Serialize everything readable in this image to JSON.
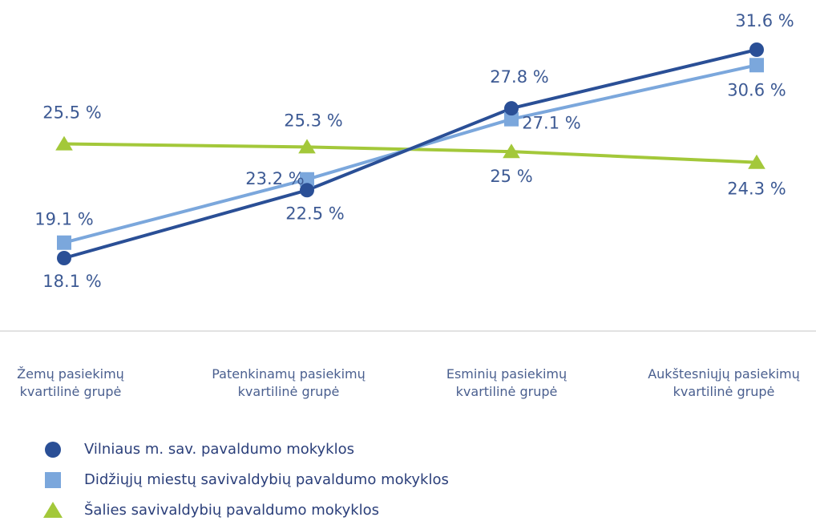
{
  "chart_data": {
    "type": "line",
    "categories": [
      "Žemų pasiekimų\nkvartilinė grupė",
      "Patenkinamų pasiekimų\nkvartilinė grupė",
      "Esminių pasiekimų\nkvartilinė grupė",
      "Aukštesniųjų pasiekimų\nkvartilinė grupė"
    ],
    "series": [
      {
        "name": "Vilniaus m. sav. pavaldumo mokyklos",
        "color": "#2a4f96",
        "marker": "circle",
        "values": [
          18.1,
          22.5,
          27.8,
          31.6
        ],
        "value_labels": [
          "18.1 %",
          "22.5 %",
          "27.8 %",
          "31.6 %"
        ]
      },
      {
        "name": "Didžiųjų miestų savivaldybių pavaldumo mokyklos",
        "color": "#7ba7dc",
        "marker": "square",
        "values": [
          19.1,
          23.2,
          27.1,
          30.6
        ],
        "value_labels": [
          "19.1 %",
          "23.2 %",
          "27.1 %",
          "30.6 %"
        ]
      },
      {
        "name": "Šalies savivaldybių pavaldumo mokyklos",
        "color": "#a3c83a",
        "marker": "triangle",
        "values": [
          25.5,
          25.3,
          25,
          24.3
        ],
        "value_labels": [
          "25.5 %",
          "25.3 %",
          "25 %",
          "24.3 %"
        ]
      }
    ]
  }
}
